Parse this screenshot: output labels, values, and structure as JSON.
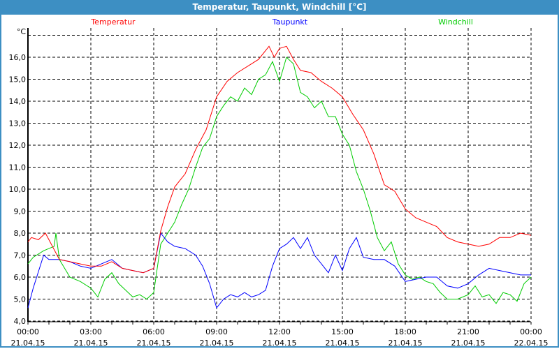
{
  "window": {
    "title": "Temperatur, Taupunkt, Windchill [°C]"
  },
  "chart_data": {
    "type": "line",
    "title": "Temperatur, Taupunkt, Windchill [°C]",
    "ylabel": "°C",
    "ylim": [
      4.0,
      17.3
    ],
    "yticks": [
      "4,0",
      "5,0",
      "6,0",
      "7,0",
      "8,0",
      "9,0",
      "10,0",
      "11,0",
      "12,0",
      "13,0",
      "14,0",
      "15,0",
      "16,0"
    ],
    "xlim": [
      "21.04.15 00:00",
      "22.04.15 00:00"
    ],
    "xticks": [
      {
        "time": "00:00",
        "date": "21.04.15"
      },
      {
        "time": "03:00",
        "date": "21.04.15"
      },
      {
        "time": "06:00",
        "date": "21.04.15"
      },
      {
        "time": "09:00",
        "date": "21.04.15"
      },
      {
        "time": "12:00",
        "date": "21.04.15"
      },
      {
        "time": "15:00",
        "date": "21.04.15"
      },
      {
        "time": "18:00",
        "date": "21.04.15"
      },
      {
        "time": "21:00",
        "date": "21.04.15"
      },
      {
        "time": "00:00",
        "date": "22.04.15"
      }
    ],
    "grid": true,
    "legend_placement": "top",
    "series": [
      {
        "name": "Temperatur",
        "color": "#ff0000",
        "points": [
          [
            "00:00",
            7.6
          ],
          [
            "00:10",
            7.8
          ],
          [
            "00:30",
            7.7
          ],
          [
            "00:50",
            8.0
          ],
          [
            "01:10",
            7.4
          ],
          [
            "01:30",
            6.8
          ],
          [
            "02:00",
            6.7
          ],
          [
            "02:30",
            6.6
          ],
          [
            "03:00",
            6.5
          ],
          [
            "03:30",
            6.5
          ],
          [
            "04:00",
            6.7
          ],
          [
            "04:30",
            6.4
          ],
          [
            "05:00",
            6.3
          ],
          [
            "05:30",
            6.2
          ],
          [
            "06:00",
            6.4
          ],
          [
            "06:20",
            8.1
          ],
          [
            "06:40",
            9.2
          ],
          [
            "07:00",
            10.1
          ],
          [
            "07:30",
            10.7
          ],
          [
            "08:00",
            11.8
          ],
          [
            "08:30",
            12.7
          ],
          [
            "09:00",
            14.2
          ],
          [
            "09:30",
            14.9
          ],
          [
            "10:00",
            15.3
          ],
          [
            "10:30",
            15.6
          ],
          [
            "11:00",
            15.9
          ],
          [
            "11:30",
            16.5
          ],
          [
            "11:45",
            16.0
          ],
          [
            "12:00",
            16.4
          ],
          [
            "12:20",
            16.5
          ],
          [
            "12:40",
            15.9
          ],
          [
            "13:00",
            15.4
          ],
          [
            "13:30",
            15.3
          ],
          [
            "14:00",
            14.9
          ],
          [
            "14:30",
            14.6
          ],
          [
            "15:00",
            14.2
          ],
          [
            "15:30",
            13.4
          ],
          [
            "16:00",
            12.7
          ],
          [
            "16:30",
            11.6
          ],
          [
            "17:00",
            10.2
          ],
          [
            "17:30",
            9.9
          ],
          [
            "18:00",
            9.1
          ],
          [
            "18:30",
            8.7
          ],
          [
            "19:00",
            8.5
          ],
          [
            "19:30",
            8.3
          ],
          [
            "20:00",
            7.8
          ],
          [
            "20:30",
            7.6
          ],
          [
            "21:00",
            7.5
          ],
          [
            "21:30",
            7.4
          ],
          [
            "22:00",
            7.5
          ],
          [
            "22:30",
            7.8
          ],
          [
            "23:00",
            7.8
          ],
          [
            "23:30",
            8.0
          ],
          [
            "24:00",
            7.9
          ]
        ]
      },
      {
        "name": "Taupunkt",
        "color": "#0000ff",
        "points": [
          [
            "00:00",
            4.6
          ],
          [
            "00:15",
            5.5
          ],
          [
            "00:45",
            7.0
          ],
          [
            "01:00",
            6.8
          ],
          [
            "01:30",
            6.8
          ],
          [
            "02:00",
            6.7
          ],
          [
            "02:30",
            6.5
          ],
          [
            "03:00",
            6.4
          ],
          [
            "03:30",
            6.6
          ],
          [
            "04:00",
            6.8
          ],
          [
            "04:30",
            6.4
          ],
          [
            "05:00",
            6.3
          ],
          [
            "05:30",
            6.2
          ],
          [
            "06:00",
            6.4
          ],
          [
            "06:20",
            8.0
          ],
          [
            "06:40",
            7.6
          ],
          [
            "07:00",
            7.4
          ],
          [
            "07:30",
            7.3
          ],
          [
            "08:00",
            7.0
          ],
          [
            "08:20",
            6.5
          ],
          [
            "08:40",
            5.7
          ],
          [
            "09:00",
            4.6
          ],
          [
            "09:20",
            5.0
          ],
          [
            "09:40",
            5.2
          ],
          [
            "10:00",
            5.1
          ],
          [
            "10:20",
            5.3
          ],
          [
            "10:40",
            5.1
          ],
          [
            "11:00",
            5.2
          ],
          [
            "11:20",
            5.4
          ],
          [
            "11:40",
            6.5
          ],
          [
            "12:00",
            7.3
          ],
          [
            "12:20",
            7.5
          ],
          [
            "12:40",
            7.8
          ],
          [
            "13:00",
            7.3
          ],
          [
            "13:20",
            7.8
          ],
          [
            "13:40",
            7.0
          ],
          [
            "14:00",
            6.6
          ],
          [
            "14:20",
            6.2
          ],
          [
            "14:40",
            7.0
          ],
          [
            "15:00",
            6.3
          ],
          [
            "15:20",
            7.3
          ],
          [
            "15:40",
            7.8
          ],
          [
            "16:00",
            6.9
          ],
          [
            "16:30",
            6.8
          ],
          [
            "17:00",
            6.8
          ],
          [
            "17:30",
            6.5
          ],
          [
            "18:00",
            5.8
          ],
          [
            "18:30",
            5.9
          ],
          [
            "19:00",
            6.0
          ],
          [
            "19:30",
            6.0
          ],
          [
            "20:00",
            5.6
          ],
          [
            "20:30",
            5.5
          ],
          [
            "21:00",
            5.7
          ],
          [
            "21:30",
            6.1
          ],
          [
            "22:00",
            6.4
          ],
          [
            "22:30",
            6.3
          ],
          [
            "23:00",
            6.2
          ],
          [
            "23:30",
            6.1
          ],
          [
            "24:00",
            6.1
          ]
        ]
      },
      {
        "name": "Windchill",
        "color": "#00cc00",
        "points": [
          [
            "00:00",
            6.6
          ],
          [
            "00:15",
            6.9
          ],
          [
            "00:45",
            7.2
          ],
          [
            "01:15",
            7.4
          ],
          [
            "01:20",
            8.0
          ],
          [
            "01:30",
            6.8
          ],
          [
            "02:00",
            6.0
          ],
          [
            "02:30",
            5.8
          ],
          [
            "03:00",
            5.5
          ],
          [
            "03:20",
            5.1
          ],
          [
            "03:40",
            5.9
          ],
          [
            "04:00",
            6.2
          ],
          [
            "04:20",
            5.7
          ],
          [
            "04:40",
            5.4
          ],
          [
            "05:00",
            5.1
          ],
          [
            "05:20",
            5.2
          ],
          [
            "05:40",
            5.0
          ],
          [
            "06:00",
            5.3
          ],
          [
            "06:20",
            7.5
          ],
          [
            "06:40",
            8.0
          ],
          [
            "07:00",
            8.5
          ],
          [
            "07:20",
            9.3
          ],
          [
            "07:40",
            10.0
          ],
          [
            "08:00",
            11.0
          ],
          [
            "08:20",
            11.9
          ],
          [
            "08:40",
            12.3
          ],
          [
            "09:00",
            13.3
          ],
          [
            "09:20",
            13.8
          ],
          [
            "09:40",
            14.2
          ],
          [
            "10:00",
            14.0
          ],
          [
            "10:20",
            14.6
          ],
          [
            "10:40",
            14.3
          ],
          [
            "11:00",
            15.0
          ],
          [
            "11:20",
            15.2
          ],
          [
            "11:40",
            15.8
          ],
          [
            "12:00",
            14.9
          ],
          [
            "12:20",
            16.0
          ],
          [
            "12:40",
            15.7
          ],
          [
            "13:00",
            14.4
          ],
          [
            "13:20",
            14.2
          ],
          [
            "13:40",
            13.7
          ],
          [
            "14:00",
            14.0
          ],
          [
            "14:20",
            13.3
          ],
          [
            "14:40",
            13.3
          ],
          [
            "15:00",
            12.5
          ],
          [
            "15:20",
            12.0
          ],
          [
            "15:40",
            10.8
          ],
          [
            "16:00",
            10.0
          ],
          [
            "16:20",
            9.0
          ],
          [
            "16:40",
            7.8
          ],
          [
            "17:00",
            7.2
          ],
          [
            "17:20",
            7.6
          ],
          [
            "17:40",
            6.6
          ],
          [
            "18:00",
            6.1
          ],
          [
            "18:20",
            5.9
          ],
          [
            "18:40",
            6.0
          ],
          [
            "19:00",
            5.8
          ],
          [
            "19:20",
            5.7
          ],
          [
            "19:40",
            5.3
          ],
          [
            "20:00",
            5.0
          ],
          [
            "20:30",
            5.0
          ],
          [
            "21:00",
            5.2
          ],
          [
            "21:20",
            5.6
          ],
          [
            "21:40",
            5.1
          ],
          [
            "22:00",
            5.2
          ],
          [
            "22:20",
            4.8
          ],
          [
            "22:40",
            5.3
          ],
          [
            "23:00",
            5.2
          ],
          [
            "23:20",
            4.9
          ],
          [
            "23:40",
            5.7
          ],
          [
            "24:00",
            6.0
          ]
        ]
      }
    ]
  }
}
